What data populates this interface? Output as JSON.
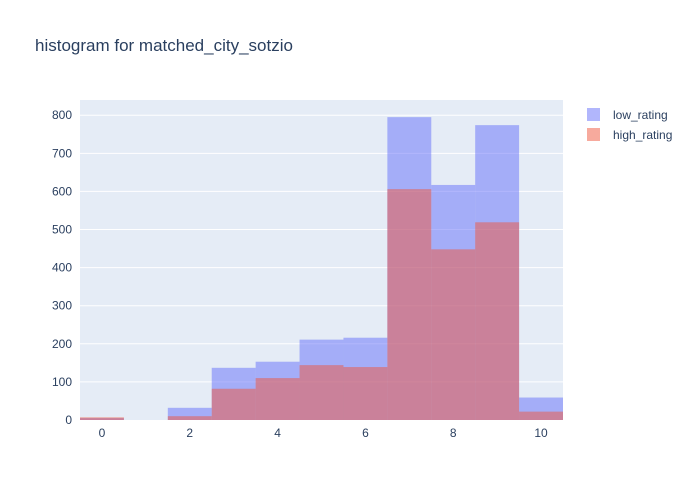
{
  "chart_data": {
    "type": "bar",
    "title": "histogram for matched_city_sotzio",
    "xlabel": "",
    "ylabel": "",
    "barmode": "overlay",
    "bin_width": 1,
    "bin_centers": [
      0,
      1,
      2,
      3,
      4,
      5,
      6,
      7,
      8,
      9,
      10
    ],
    "xlim": [
      -0.5,
      10.5
    ],
    "ylim": [
      0,
      840
    ],
    "x_ticks": [
      0,
      2,
      4,
      6,
      8,
      10
    ],
    "y_ticks": [
      0,
      100,
      200,
      300,
      400,
      500,
      600,
      700,
      800
    ],
    "grid": true,
    "legend_position": "top-right",
    "series": [
      {
        "name": "low_rating",
        "color": "#636efa",
        "values": [
          5,
          0,
          32,
          137,
          153,
          211,
          216,
          795,
          617,
          774,
          59
        ]
      },
      {
        "name": "high_rating",
        "color": "#ef553b",
        "values": [
          7,
          0,
          10,
          82,
          110,
          144,
          139,
          606,
          448,
          519,
          22
        ]
      }
    ]
  }
}
